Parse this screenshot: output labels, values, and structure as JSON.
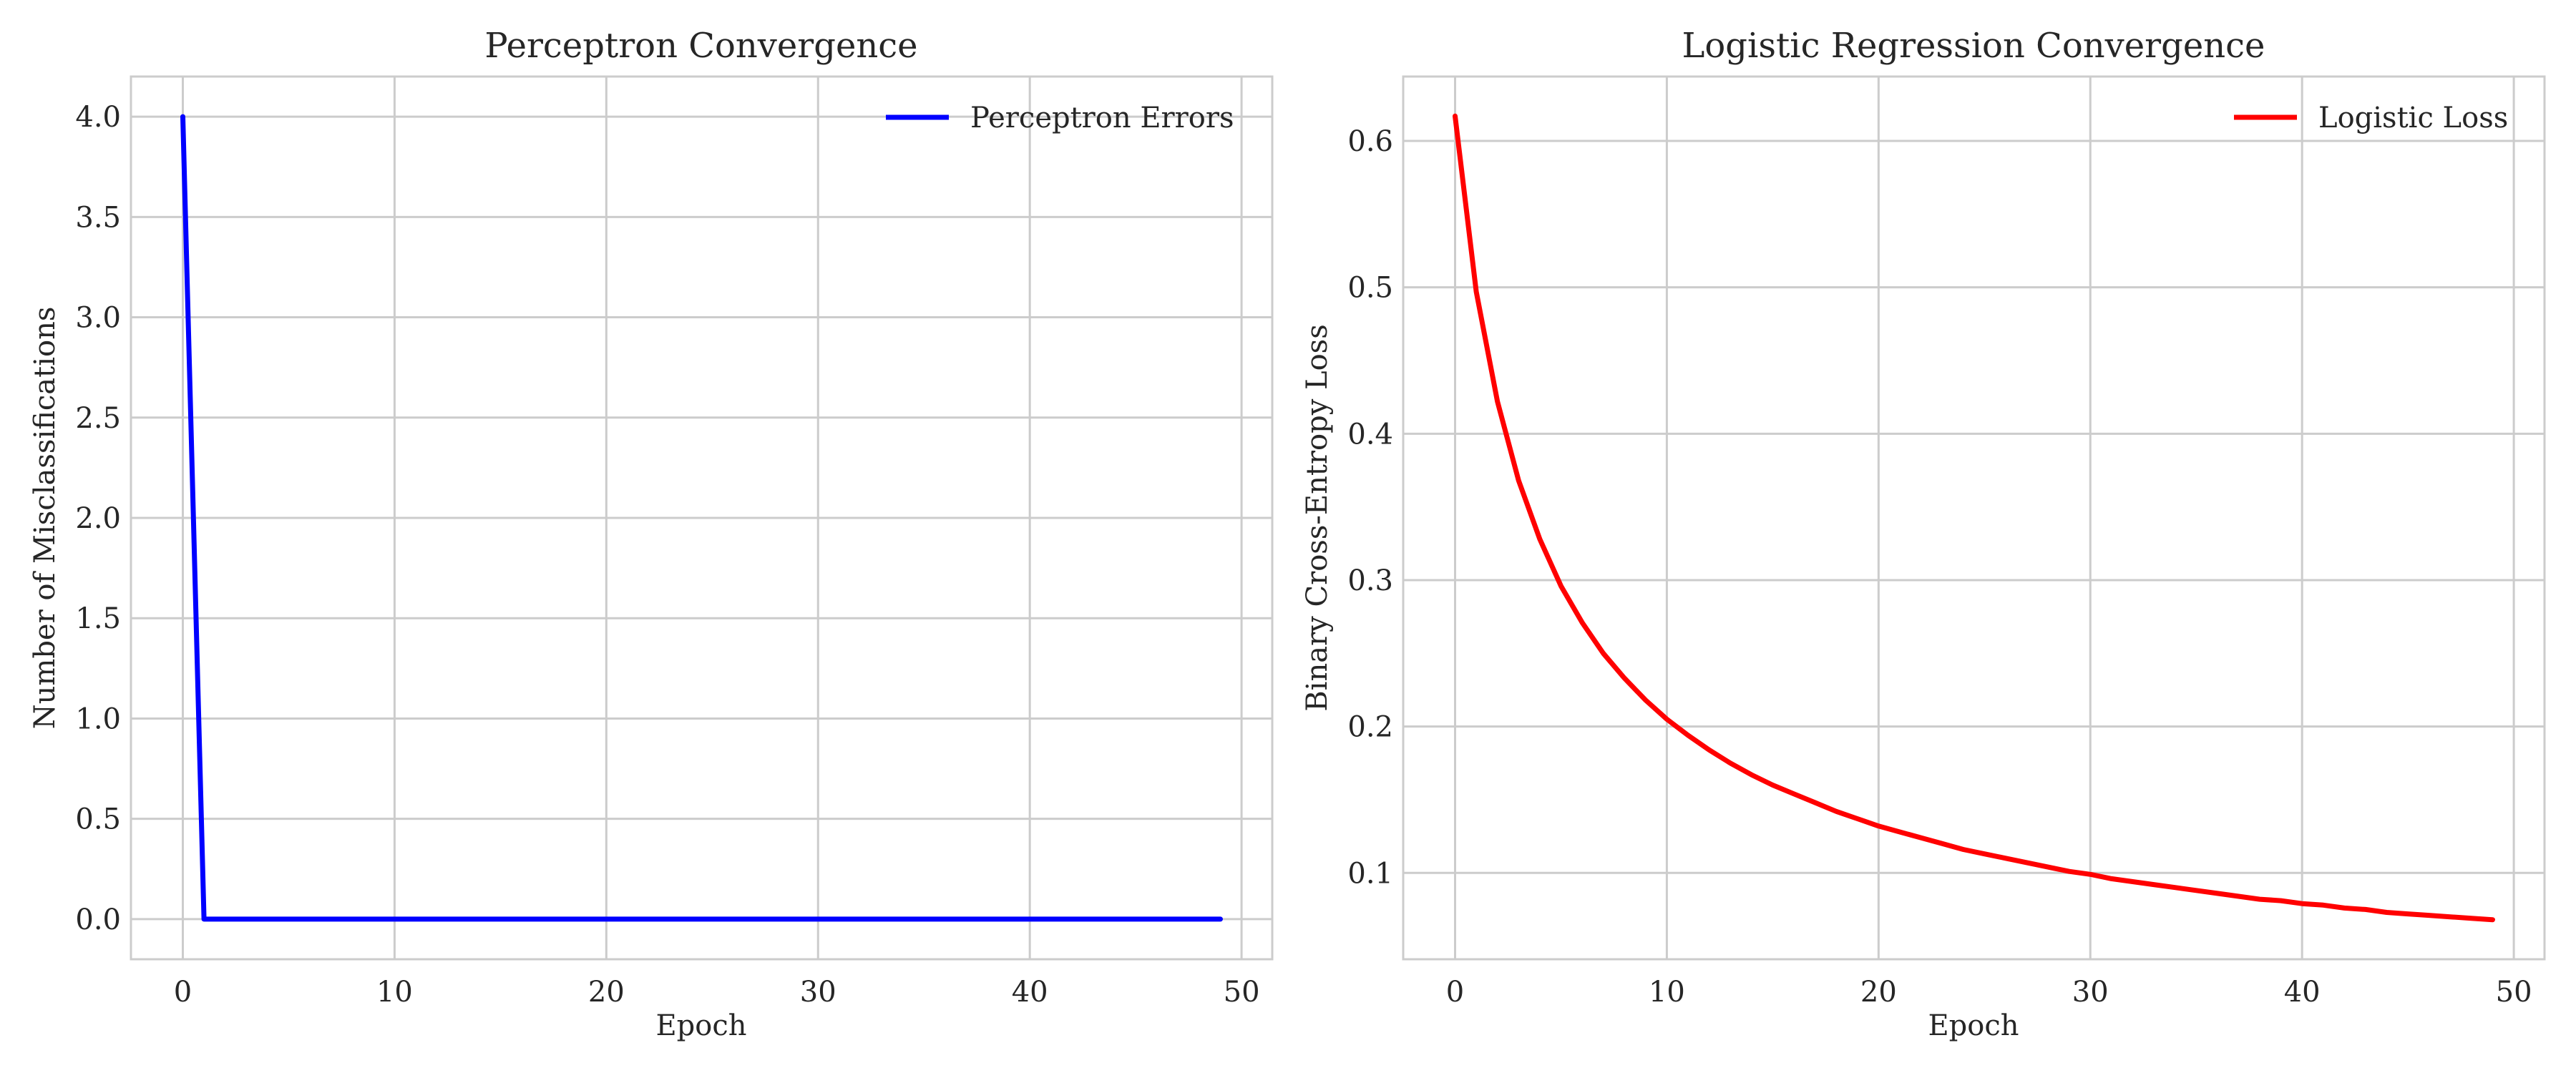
{
  "chart_data": [
    {
      "type": "line",
      "title": "Perceptron Convergence",
      "xlabel": "Epoch",
      "ylabel": "Number of Misclassifications",
      "xlim": [
        -2.45,
        51.45
      ],
      "ylim": [
        -0.2,
        4.2
      ],
      "xticks": [
        0,
        10,
        20,
        30,
        40,
        50
      ],
      "xtick_labels": [
        "0",
        "10",
        "20",
        "30",
        "40",
        "50"
      ],
      "yticks": [
        0,
        0.5,
        1,
        1.5,
        2,
        2.5,
        3,
        3.5,
        4
      ],
      "ytick_labels": [
        "0.0",
        "0.5",
        "1.0",
        "1.5",
        "2.0",
        "2.5",
        "3.0",
        "3.5",
        "4.0"
      ],
      "grid": true,
      "legend_position": "upper right",
      "series": [
        {
          "name": "Perceptron Errors",
          "color": "#0000ff",
          "x": [
            0,
            1,
            2,
            3,
            4,
            5,
            6,
            7,
            8,
            9,
            10,
            11,
            12,
            13,
            14,
            15,
            16,
            17,
            18,
            19,
            20,
            21,
            22,
            23,
            24,
            25,
            26,
            27,
            28,
            29,
            30,
            31,
            32,
            33,
            34,
            35,
            36,
            37,
            38,
            39,
            40,
            41,
            42,
            43,
            44,
            45,
            46,
            47,
            48,
            49
          ],
          "y": [
            4,
            0,
            0,
            0,
            0,
            0,
            0,
            0,
            0,
            0,
            0,
            0,
            0,
            0,
            0,
            0,
            0,
            0,
            0,
            0,
            0,
            0,
            0,
            0,
            0,
            0,
            0,
            0,
            0,
            0,
            0,
            0,
            0,
            0,
            0,
            0,
            0,
            0,
            0,
            0,
            0,
            0,
            0,
            0,
            0,
            0,
            0,
            0,
            0,
            0
          ]
        }
      ]
    },
    {
      "type": "line",
      "title": "Logistic Regression Convergence",
      "xlabel": "Epoch",
      "ylabel": "Binary Cross-Entropy Loss",
      "xlim": [
        -2.45,
        51.45
      ],
      "ylim": [
        0.041,
        0.644
      ],
      "xticks": [
        0,
        10,
        20,
        30,
        40,
        50
      ],
      "xtick_labels": [
        "0",
        "10",
        "20",
        "30",
        "40",
        "50"
      ],
      "yticks": [
        0.1,
        0.2,
        0.3,
        0.4,
        0.5,
        0.6
      ],
      "ytick_labels": [
        "0.1",
        "0.2",
        "0.3",
        "0.4",
        "0.5",
        "0.6"
      ],
      "grid": true,
      "legend_position": "upper right",
      "series": [
        {
          "name": "Logistic Loss",
          "color": "#ff0000",
          "x": [
            0,
            1,
            2,
            3,
            4,
            5,
            6,
            7,
            8,
            9,
            10,
            11,
            12,
            13,
            14,
            15,
            16,
            17,
            18,
            19,
            20,
            21,
            22,
            23,
            24,
            25,
            26,
            27,
            28,
            29,
            30,
            31,
            32,
            33,
            34,
            35,
            36,
            37,
            38,
            39,
            40,
            41,
            42,
            43,
            44,
            45,
            46,
            47,
            48,
            49
          ],
          "y": [
            0.617,
            0.497,
            0.422,
            0.368,
            0.328,
            0.296,
            0.271,
            0.25,
            0.233,
            0.218,
            0.205,
            0.194,
            0.184,
            0.175,
            0.167,
            0.16,
            0.154,
            0.148,
            0.142,
            0.137,
            0.132,
            0.128,
            0.124,
            0.12,
            0.116,
            0.113,
            0.11,
            0.107,
            0.104,
            0.101,
            0.099,
            0.096,
            0.094,
            0.092,
            0.09,
            0.088,
            0.086,
            0.084,
            0.082,
            0.081,
            0.079,
            0.078,
            0.076,
            0.075,
            0.073,
            0.072,
            0.071,
            0.07,
            0.069,
            0.068
          ]
        }
      ]
    }
  ]
}
